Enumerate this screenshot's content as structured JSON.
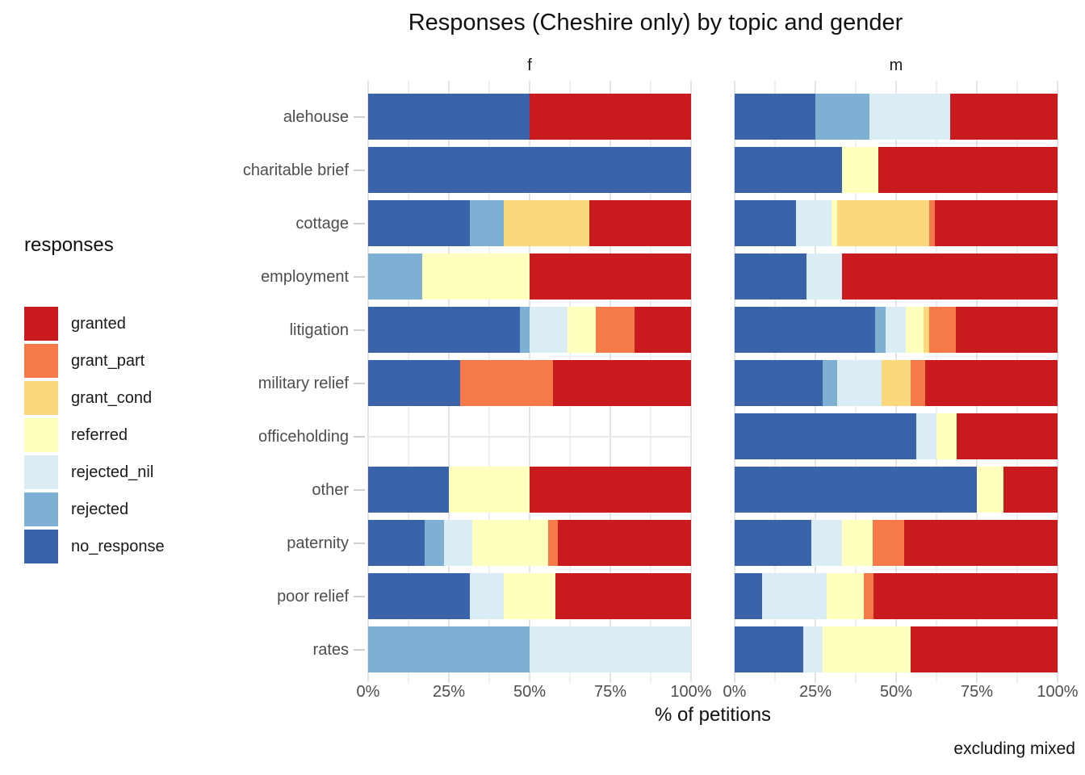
{
  "title": "Responses (Cheshire only) by topic and gender",
  "caption": "excluding mixed",
  "chart_data": {
    "type": "bar",
    "orientation": "horizontal",
    "stacked": true,
    "unit": "percent",
    "title": "Responses (Cheshire only) by topic and gender",
    "xlabel": "% of petitions",
    "x_ticks": [
      "0%",
      "25%",
      "50%",
      "75%",
      "100%"
    ],
    "x_range": [
      0,
      100
    ],
    "grid": "on",
    "facets": [
      "f",
      "m"
    ],
    "categories": [
      "alehouse",
      "charitable brief",
      "cottage",
      "employment",
      "litigation",
      "military relief",
      "officeholding",
      "other",
      "paternity",
      "poor relief",
      "rates"
    ],
    "legend": {
      "title": "responses",
      "position": "left",
      "entries": [
        {
          "label": "granted",
          "color": "#c91a1d"
        },
        {
          "label": "grant_part",
          "color": "#f6794a"
        },
        {
          "label": "grant_cond",
          "color": "#fbd87d"
        },
        {
          "label": "referred",
          "color": "#ffffbe"
        },
        {
          "label": "rejected_nil",
          "color": "#daedf5"
        },
        {
          "label": "rejected",
          "color": "#7eb0d4"
        },
        {
          "label": "no_response",
          "color": "#3a63a9"
        }
      ]
    },
    "series": {
      "f": [
        {
          "category": "alehouse",
          "segments": [
            {
              "response": "no_response",
              "pct": 50
            },
            {
              "response": "granted",
              "pct": 50
            }
          ]
        },
        {
          "category": "charitable brief",
          "segments": [
            {
              "response": "no_response",
              "pct": 100
            }
          ]
        },
        {
          "category": "cottage",
          "segments": [
            {
              "response": "no_response",
              "pct": 31.6
            },
            {
              "response": "rejected",
              "pct": 10.5
            },
            {
              "response": "grant_cond",
              "pct": 26.3
            },
            {
              "response": "granted",
              "pct": 31.6
            }
          ]
        },
        {
          "category": "employment",
          "segments": [
            {
              "response": "rejected",
              "pct": 16.7
            },
            {
              "response": "referred",
              "pct": 33.3
            },
            {
              "response": "granted",
              "pct": 50
            }
          ]
        },
        {
          "category": "litigation",
          "segments": [
            {
              "response": "no_response",
              "pct": 47.1
            },
            {
              "response": "rejected",
              "pct": 2.9
            },
            {
              "response": "rejected_nil",
              "pct": 11.8
            },
            {
              "response": "referred",
              "pct": 8.8
            },
            {
              "response": "grant_part",
              "pct": 11.8
            },
            {
              "response": "granted",
              "pct": 17.6
            }
          ]
        },
        {
          "category": "military relief",
          "segments": [
            {
              "response": "no_response",
              "pct": 28.6
            },
            {
              "response": "grant_part",
              "pct": 28.6
            },
            {
              "response": "granted",
              "pct": 42.8
            }
          ]
        },
        {
          "category": "officeholding",
          "segments": []
        },
        {
          "category": "other",
          "segments": [
            {
              "response": "no_response",
              "pct": 25
            },
            {
              "response": "referred",
              "pct": 25
            },
            {
              "response": "granted",
              "pct": 50
            }
          ]
        },
        {
          "category": "paternity",
          "segments": [
            {
              "response": "no_response",
              "pct": 17.6
            },
            {
              "response": "rejected",
              "pct": 5.9
            },
            {
              "response": "rejected_nil",
              "pct": 8.8
            },
            {
              "response": "referred",
              "pct": 23.5
            },
            {
              "response": "grant_part",
              "pct": 2.9
            },
            {
              "response": "granted",
              "pct": 41.3
            }
          ]
        },
        {
          "category": "poor relief",
          "segments": [
            {
              "response": "no_response",
              "pct": 31.6
            },
            {
              "response": "rejected_nil",
              "pct": 10.5
            },
            {
              "response": "referred",
              "pct": 15.8
            },
            {
              "response": "granted",
              "pct": 42.1
            }
          ]
        },
        {
          "category": "rates",
          "segments": [
            {
              "response": "rejected",
              "pct": 50
            },
            {
              "response": "rejected_nil",
              "pct": 50
            }
          ]
        }
      ],
      "m": [
        {
          "category": "alehouse",
          "segments": [
            {
              "response": "no_response",
              "pct": 25
            },
            {
              "response": "rejected",
              "pct": 16.7
            },
            {
              "response": "rejected_nil",
              "pct": 25
            },
            {
              "response": "granted",
              "pct": 33.3
            }
          ]
        },
        {
          "category": "charitable brief",
          "segments": [
            {
              "response": "no_response",
              "pct": 33.3
            },
            {
              "response": "referred",
              "pct": 11.1
            },
            {
              "response": "granted",
              "pct": 55.6
            }
          ]
        },
        {
          "category": "cottage",
          "segments": [
            {
              "response": "no_response",
              "pct": 19
            },
            {
              "response": "rejected_nil",
              "pct": 11.1
            },
            {
              "response": "referred",
              "pct": 1.6
            },
            {
              "response": "grant_cond",
              "pct": 28.6
            },
            {
              "response": "grant_part",
              "pct": 1.6
            },
            {
              "response": "granted",
              "pct": 38.1
            }
          ]
        },
        {
          "category": "employment",
          "segments": [
            {
              "response": "no_response",
              "pct": 22.2
            },
            {
              "response": "rejected_nil",
              "pct": 11.1
            },
            {
              "response": "granted",
              "pct": 66.7
            }
          ]
        },
        {
          "category": "litigation",
          "segments": [
            {
              "response": "no_response",
              "pct": 43.6
            },
            {
              "response": "rejected",
              "pct": 3.1
            },
            {
              "response": "rejected_nil",
              "pct": 6.3
            },
            {
              "response": "referred",
              "pct": 5.4
            },
            {
              "response": "grant_cond",
              "pct": 1.9
            },
            {
              "response": "grant_part",
              "pct": 8.1
            },
            {
              "response": "granted",
              "pct": 31.6
            }
          ]
        },
        {
          "category": "military relief",
          "segments": [
            {
              "response": "no_response",
              "pct": 27.3
            },
            {
              "response": "rejected",
              "pct": 4.5
            },
            {
              "response": "rejected_nil",
              "pct": 13.6
            },
            {
              "response": "grant_cond",
              "pct": 9.1
            },
            {
              "response": "grant_part",
              "pct": 4.6
            },
            {
              "response": "granted",
              "pct": 40.9
            }
          ]
        },
        {
          "category": "officeholding",
          "segments": [
            {
              "response": "no_response",
              "pct": 56.2
            },
            {
              "response": "rejected_nil",
              "pct": 6.3
            },
            {
              "response": "referred",
              "pct": 6.3
            },
            {
              "response": "granted",
              "pct": 31.2
            }
          ]
        },
        {
          "category": "other",
          "segments": [
            {
              "response": "no_response",
              "pct": 75
            },
            {
              "response": "referred",
              "pct": 8.3
            },
            {
              "response": "granted",
              "pct": 16.7
            }
          ]
        },
        {
          "category": "paternity",
          "segments": [
            {
              "response": "no_response",
              "pct": 23.8
            },
            {
              "response": "rejected_nil",
              "pct": 9.5
            },
            {
              "response": "referred",
              "pct": 9.5
            },
            {
              "response": "grant_part",
              "pct": 9.6
            },
            {
              "response": "granted",
              "pct": 47.6
            }
          ]
        },
        {
          "category": "poor relief",
          "segments": [
            {
              "response": "no_response",
              "pct": 8.6
            },
            {
              "response": "rejected_nil",
              "pct": 20
            },
            {
              "response": "referred",
              "pct": 11.4
            },
            {
              "response": "grant_part",
              "pct": 2.9
            },
            {
              "response": "granted",
              "pct": 57.1
            }
          ]
        },
        {
          "category": "rates",
          "segments": [
            {
              "response": "no_response",
              "pct": 21.2
            },
            {
              "response": "rejected_nil",
              "pct": 6.1
            },
            {
              "response": "referred",
              "pct": 27.3
            },
            {
              "response": "granted",
              "pct": 45.4
            }
          ]
        }
      ]
    }
  }
}
